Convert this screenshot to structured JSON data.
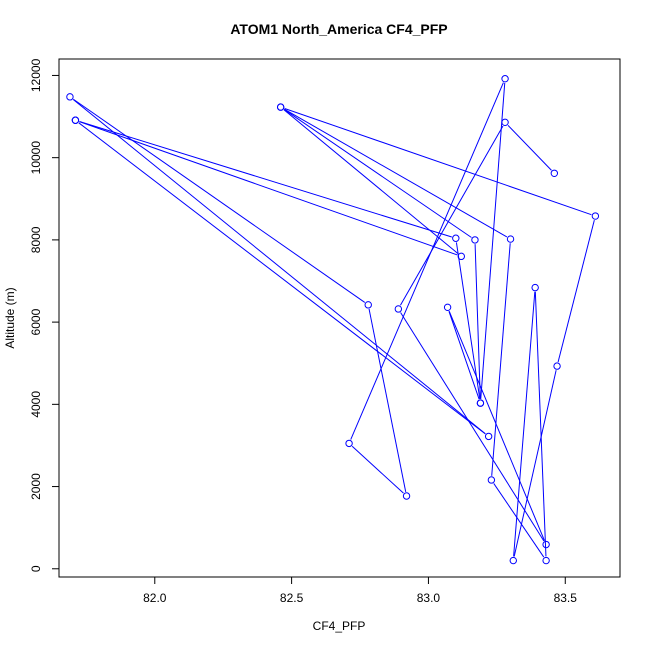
{
  "chart_data": {
    "type": "line",
    "title": "ATOM1 North_America CF4_PFP",
    "xlabel": "CF4_PFP",
    "ylabel": "Altitude (m)",
    "xlim": [
      81.65,
      83.7
    ],
    "ylim": [
      -200,
      12400
    ],
    "xticks": [
      82.0,
      82.5,
      83.0,
      83.5
    ],
    "xtick_labels": [
      "82.0",
      "82.5",
      "83.0",
      "83.5"
    ],
    "yticks": [
      0,
      2000,
      4000,
      6000,
      8000,
      10000,
      12000
    ],
    "ytick_labels": [
      "0",
      "2000",
      "4000",
      "6000",
      "8000",
      "10000",
      "12000"
    ],
    "grid": false,
    "marker": "open-circle",
    "series": [
      {
        "color": "#0000ff",
        "points": [
          {
            "x": 83.46,
            "y": 9620
          },
          {
            "x": 83.28,
            "y": 10860
          },
          {
            "x": 82.89,
            "y": 6320
          },
          {
            "x": 83.43,
            "y": 590
          },
          {
            "x": 83.07,
            "y": 6360
          },
          {
            "x": 83.19,
            "y": 4030
          },
          {
            "x": 83.28,
            "y": 11920
          },
          {
            "x": 82.71,
            "y": 3050
          },
          {
            "x": 82.92,
            "y": 1770
          },
          {
            "x": 82.78,
            "y": 6420
          },
          {
            "x": 81.69,
            "y": 11480
          },
          {
            "x": 83.22,
            "y": 3220
          },
          {
            "x": 81.71,
            "y": 10910
          },
          {
            "x": 83.12,
            "y": 7600
          },
          {
            "x": 82.46,
            "y": 11230
          },
          {
            "x": 83.3,
            "y": 8020
          },
          {
            "x": 83.23,
            "y": 2160
          },
          {
            "x": 83.43,
            "y": 200
          },
          {
            "x": 83.39,
            "y": 6840
          },
          {
            "x": 83.31,
            "y": 200
          },
          {
            "x": 83.47,
            "y": 4930
          },
          {
            "x": 83.61,
            "y": 8580
          },
          {
            "x": 82.46,
            "y": 11230
          },
          {
            "x": 83.17,
            "y": 8000
          },
          {
            "x": 83.19,
            "y": 4030
          },
          {
            "x": 83.1,
            "y": 8040
          },
          {
            "x": 81.71,
            "y": 10910
          }
        ]
      }
    ]
  }
}
